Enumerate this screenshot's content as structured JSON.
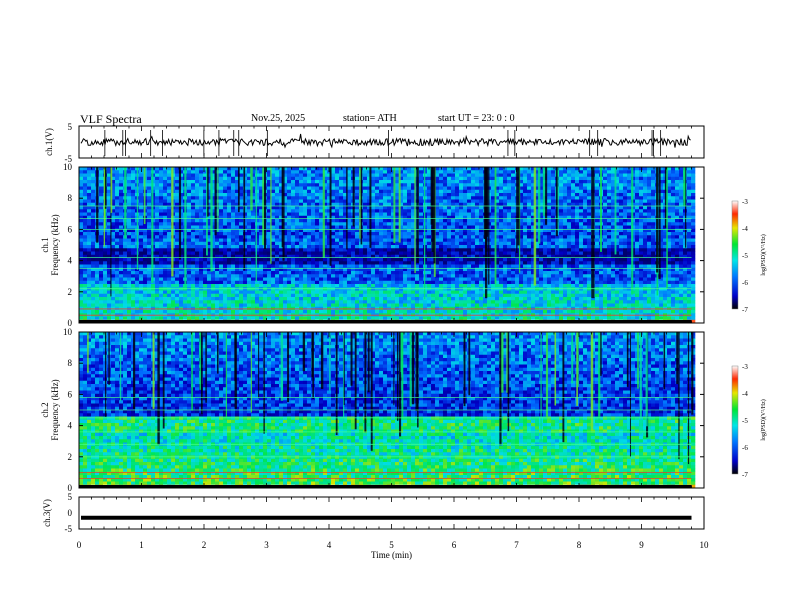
{
  "header": {
    "title": "VLF  Spectra",
    "date": "Nov.25, 2025",
    "station": "station= ATH",
    "start": "start  UT  =    23: 0   : 0"
  },
  "colors": {
    "spec_low": "#00007f",
    "spec_mid": "#00ffaa",
    "spec_high": "#ff0000",
    "trace": "#000000",
    "frame": "#000000"
  },
  "chart_data": [
    {
      "type": "line",
      "name": "ch1-waveform",
      "ylabel": "ch.1(V)",
      "yticks": [
        "5",
        "-5"
      ],
      "ylim": [
        -5,
        5
      ],
      "xlim": [
        0,
        10
      ],
      "description_values": "noisy trace around 0 V"
    },
    {
      "type": "heatmap",
      "name": "ch1-spectrogram",
      "ylabel": [
        "ch.1",
        "Frequency  (kHz)"
      ],
      "yticks": [
        "0",
        "2",
        "4",
        "6",
        "8",
        "10"
      ],
      "ylim": [
        0,
        10
      ],
      "xlim": [
        0,
        9.8
      ],
      "colorbar": {
        "label": "log(PSD)(V²/Hz)",
        "ticks": [
          "-3",
          "-4",
          "-5",
          "-6",
          "-7"
        ],
        "range": [
          -7,
          -3
        ]
      }
    },
    {
      "type": "heatmap",
      "name": "ch2-spectrogram",
      "ylabel": [
        "ch.2",
        "Frequency  (kHz)"
      ],
      "yticks": [
        "0",
        "2",
        "4",
        "6",
        "8",
        "10"
      ],
      "ylim": [
        0,
        10
      ],
      "xlim": [
        0,
        9.8
      ],
      "colorbar": {
        "label": "log(PSD)(V²/Hz)",
        "ticks": [
          "-3",
          "-4",
          "-5",
          "-6",
          "-7"
        ],
        "range": [
          -7,
          -3
        ]
      }
    },
    {
      "type": "line",
      "name": "ch3-waveform",
      "ylabel": "ch.3(V)",
      "yticks": [
        "5",
        "0",
        "-5"
      ],
      "ylim": [
        -5,
        5
      ],
      "xlim": [
        0,
        10
      ],
      "level": -1.5
    }
  ],
  "xaxis": {
    "label": "Time  (min)",
    "ticks": [
      "0",
      "1",
      "2",
      "3",
      "4",
      "5",
      "6",
      "7",
      "8",
      "9",
      "10"
    ],
    "range": [
      0,
      10
    ]
  }
}
